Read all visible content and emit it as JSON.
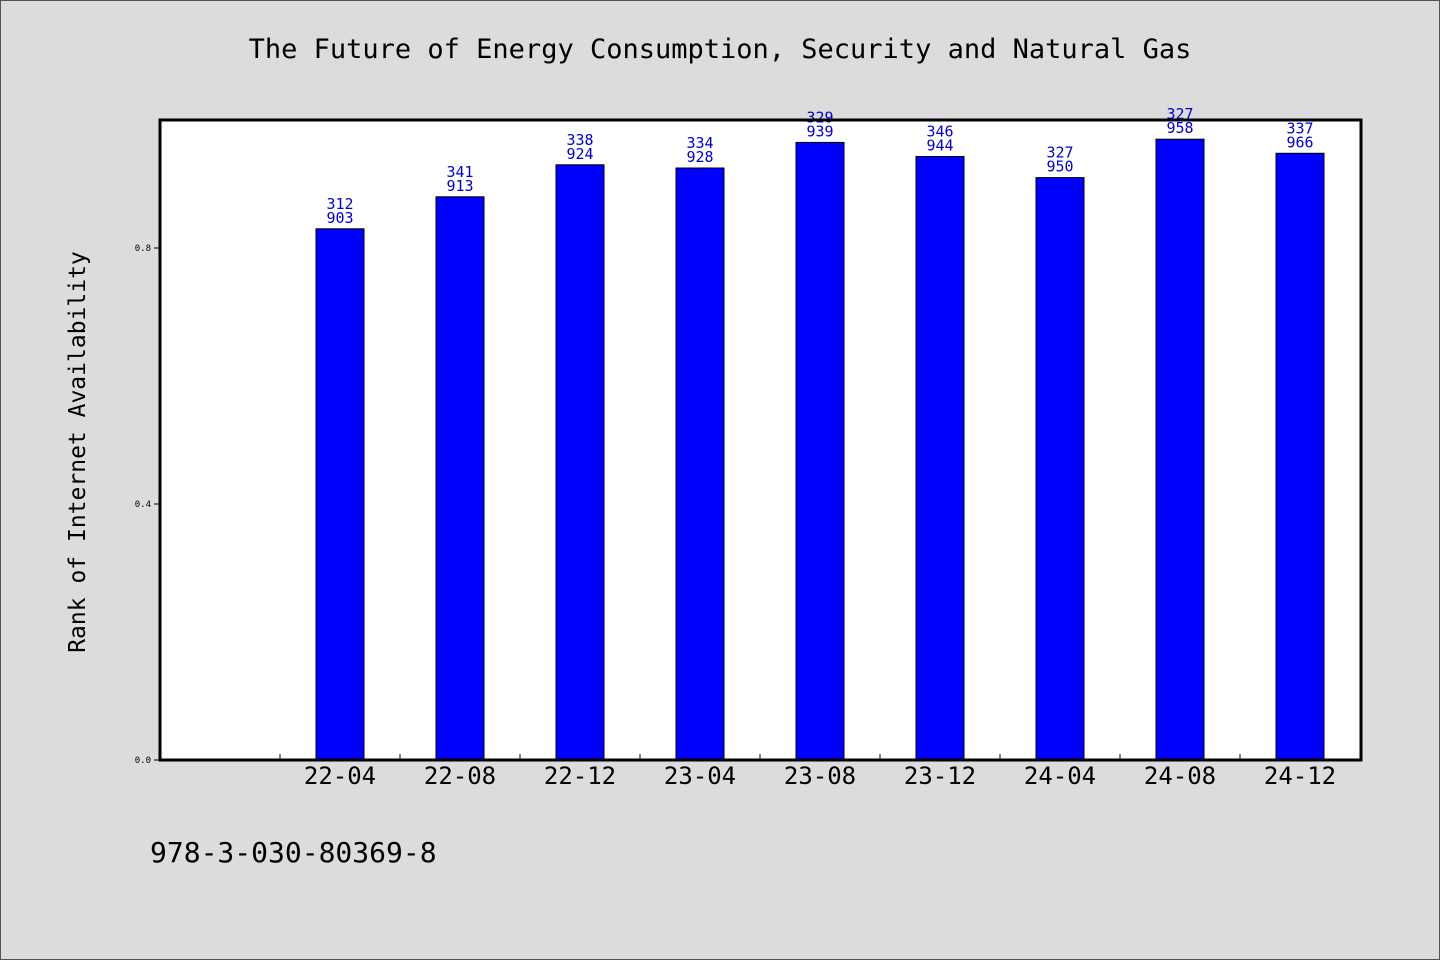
{
  "chart_data": {
    "type": "bar",
    "title": "The Future of Energy Consumption, Security and Natural Gas",
    "xlabel": "",
    "ylabel": "Rank of Internet Availability",
    "categories": [
      "22-04",
      "22-08",
      "22-12",
      "23-04",
      "23-08",
      "23-12",
      "24-04",
      "24-08",
      "24-12"
    ],
    "series": [
      {
        "values": [
          0.83,
          0.88,
          0.93,
          0.925,
          0.965,
          0.943,
          0.91,
          0.97,
          0.948
        ]
      }
    ],
    "bar_labels": [
      [
        "312",
        "903"
      ],
      [
        "341",
        "913"
      ],
      [
        "338",
        "924"
      ],
      [
        "334",
        "928"
      ],
      [
        "329",
        "939"
      ],
      [
        "346",
        "944"
      ],
      [
        "327",
        "950"
      ],
      [
        "327",
        "958"
      ],
      [
        "337",
        "966"
      ]
    ],
    "yticks": [
      "0.0",
      "0.4",
      "0.8"
    ],
    "ylim": [
      0,
      1.0
    ],
    "grid": false,
    "legend": "none",
    "colors": {
      "bar": "#0000ff",
      "bar_label": "#0000cc",
      "background": "#dcdcdc",
      "plot_background": "#ffffff"
    }
  },
  "footer": {
    "code": "978-3-030-80369-8"
  }
}
